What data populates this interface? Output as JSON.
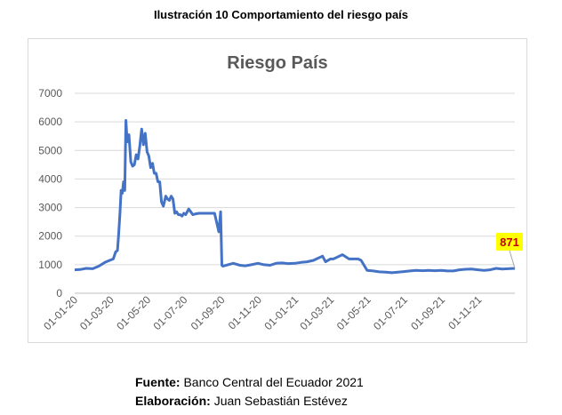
{
  "caption": "Ilustración 10 Comportamiento del riesgo país",
  "footer": {
    "source_label": "Fuente:",
    "source_value": "Banco Central del Ecuador 2021",
    "author_label": "Elaboración:",
    "author_value": "Juan Sebastián Estévez"
  },
  "chart_data": {
    "type": "line",
    "title": "Riesgo País",
    "xlabel": "",
    "ylabel": "",
    "ylim": [
      0,
      7000
    ],
    "yticks": [
      0,
      1000,
      2000,
      3000,
      4000,
      5000,
      6000,
      7000
    ],
    "xticks": [
      "01-01-20",
      "01-03-20",
      "01-05-20",
      "01-07-20",
      "01-09-20",
      "01-11-20",
      "01-01-21",
      "01-03-21",
      "01-05-21",
      "01-07-21",
      "01-09-21",
      "01-11-21"
    ],
    "grid": true,
    "legend": "none",
    "line_color": "#4472c4",
    "last_label": "871",
    "series": [
      {
        "x": [
          "2020-01-01",
          "2020-01-10",
          "2020-01-20",
          "2020-01-31",
          "2020-02-10",
          "2020-02-20",
          "2020-02-28",
          "2020-03-05",
          "2020-03-09",
          "2020-03-12",
          "2020-03-14",
          "2020-03-16",
          "2020-03-18",
          "2020-03-20",
          "2020-03-22",
          "2020-03-24",
          "2020-03-26",
          "2020-03-28",
          "2020-03-31",
          "2020-04-03",
          "2020-04-06",
          "2020-04-09",
          "2020-04-12",
          "2020-04-15",
          "2020-04-18",
          "2020-04-21",
          "2020-04-24",
          "2020-04-27",
          "2020-04-30",
          "2020-05-03",
          "2020-05-06",
          "2020-05-09",
          "2020-05-12",
          "2020-05-15",
          "2020-05-18",
          "2020-05-21",
          "2020-05-24",
          "2020-05-27",
          "2020-05-31",
          "2020-06-03",
          "2020-06-06",
          "2020-06-09",
          "2020-06-12",
          "2020-06-15",
          "2020-06-18",
          "2020-06-21",
          "2020-06-24",
          "2020-06-27",
          "2020-06-30",
          "2020-07-03",
          "2020-07-08",
          "2020-07-15",
          "2020-07-20",
          "2020-07-25",
          "2020-07-31",
          "2020-08-10",
          "2020-08-20",
          "2020-08-27",
          "2020-08-30",
          "2020-09-01",
          "2020-09-03",
          "2020-09-05",
          "2020-09-08",
          "2020-09-20",
          "2020-10-01",
          "2020-10-10",
          "2020-10-20",
          "2020-10-31",
          "2020-11-10",
          "2020-11-20",
          "2020-11-30",
          "2020-12-10",
          "2020-12-20",
          "2020-12-31",
          "2021-01-10",
          "2021-01-20",
          "2021-01-31",
          "2021-02-05",
          "2021-02-10",
          "2021-02-15",
          "2021-02-20",
          "2021-02-28",
          "2021-03-05",
          "2021-03-10",
          "2021-03-20",
          "2021-03-31",
          "2021-04-10",
          "2021-04-15",
          "2021-04-20",
          "2021-04-30",
          "2021-05-10",
          "2021-05-20",
          "2021-05-31",
          "2021-06-10",
          "2021-06-20",
          "2021-06-30",
          "2021-07-10",
          "2021-07-20",
          "2021-07-31",
          "2021-08-10",
          "2021-08-20",
          "2021-08-31",
          "2021-09-10",
          "2021-09-20",
          "2021-09-30",
          "2021-10-10",
          "2021-10-20",
          "2021-10-31",
          "2021-11-10",
          "2021-11-20",
          "2021-11-30",
          "2021-12-10",
          "2021-12-20",
          "2021-12-31"
        ],
        "y": [
          820,
          830,
          870,
          860,
          950,
          1080,
          1150,
          1200,
          1450,
          1500,
          2100,
          2800,
          3600,
          3500,
          3900,
          3600,
          6050,
          5300,
          5550,
          4600,
          4450,
          4500,
          4850,
          4700,
          5150,
          5750,
          5200,
          5600,
          4950,
          4800,
          4400,
          4550,
          4200,
          4200,
          3900,
          3900,
          3200,
          3050,
          3400,
          3300,
          3250,
          3400,
          3300,
          2800,
          2850,
          2750,
          2750,
          2700,
          2800,
          2750,
          2950,
          2750,
          2780,
          2800,
          2800,
          2800,
          2800,
          2150,
          2850,
          980,
          950,
          960,
          980,
          1050,
          980,
          960,
          1000,
          1050,
          1000,
          980,
          1050,
          1060,
          1040,
          1050,
          1080,
          1100,
          1150,
          1200,
          1250,
          1300,
          1100,
          1200,
          1200,
          1250,
          1350,
          1200,
          1200,
          1200,
          1150,
          800,
          780,
          750,
          740,
          720,
          740,
          760,
          780,
          800,
          790,
          800,
          790,
          800,
          780,
          780,
          820,
          840,
          850,
          820,
          800,
          820,
          870,
          850,
          860,
          871
        ]
      }
    ]
  }
}
